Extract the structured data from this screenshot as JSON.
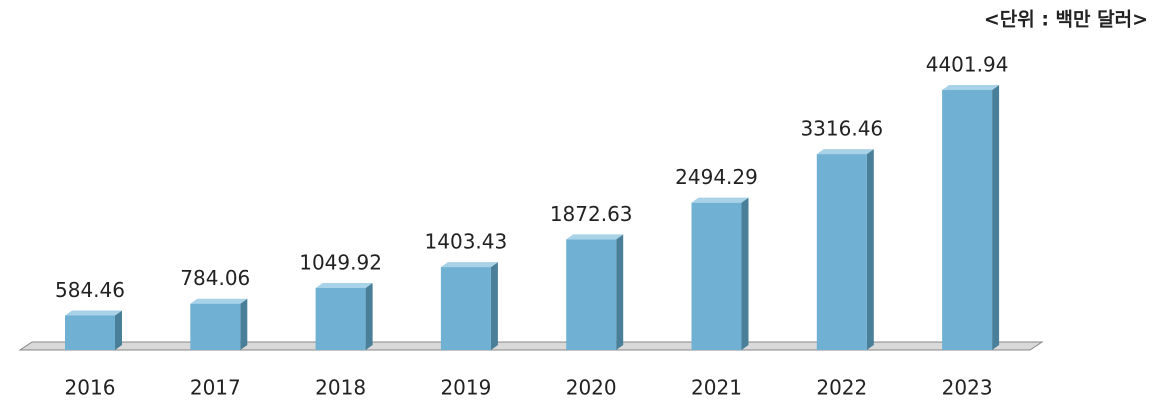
{
  "chart_data": {
    "type": "bar",
    "unit_label": "<단위 : 백만 달러>",
    "categories": [
      "2016",
      "2017",
      "2018",
      "2019",
      "2020",
      "2021",
      "2022",
      "2023"
    ],
    "values": [
      584.46,
      784.06,
      1049.92,
      1403.43,
      1872.63,
      2494.29,
      3316.46,
      4401.94
    ],
    "color": "#70b0d3"
  }
}
